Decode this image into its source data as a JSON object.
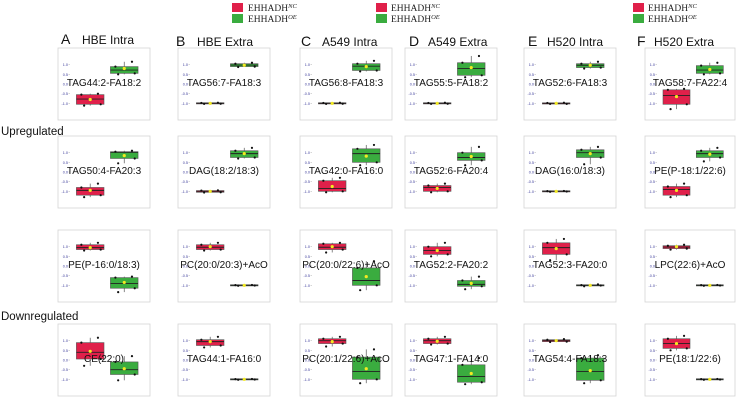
{
  "colors": {
    "nc": "#e0204a",
    "oe": "#3aac3f",
    "border": "#555555",
    "median": "#222222",
    "mean": "#f3ea22",
    "dot": "#111111",
    "tick": "#3a3a9a"
  },
  "legends": [
    {
      "nc_label": "EHHADH",
      "nc_sup": "NC",
      "oe_label": "EHHADH",
      "oe_sup": "OE"
    },
    {
      "nc_label": "EHHADH",
      "nc_sup": "NC",
      "oe_label": "EHHADH",
      "oe_sup": "OE"
    },
    {
      "nc_label": "EHHADH",
      "nc_sup": "NC",
      "oe_label": "EHHADH",
      "oe_sup": "OE"
    }
  ],
  "columns": [
    {
      "letter": "A",
      "title": "HBE Intra"
    },
    {
      "letter": "B",
      "title": "HBE Extra"
    },
    {
      "letter": "C",
      "title": "A549 Intra"
    },
    {
      "letter": "D",
      "title": "A549 Extra"
    },
    {
      "letter": "E",
      "title": "H520 Intra"
    },
    {
      "letter": "F",
      "title": "H520 Extra"
    }
  ],
  "row_labels": {
    "upregulated": "Upregulated",
    "downregulated": "Downregulated"
  },
  "chart_data": {
    "type": "boxplot",
    "groups": [
      "EHHADH NC",
      "EHHADH OE"
    ],
    "y_ticks": [
      "1.0",
      "0.5",
      "0.0",
      "-0.5",
      "-1.0"
    ],
    "panels": [
      {
        "column": "A",
        "row": 1,
        "label": "TAG44:2-FA18:2",
        "boxes": [
          {
            "q1": -1.05,
            "med": -0.78,
            "q3": -0.55,
            "wlo": -1.12,
            "whi": -0.5,
            "mean": -0.8
          },
          {
            "q1": 0.55,
            "med": 0.72,
            "q3": 0.9,
            "wlo": 0.5,
            "whi": 1.15,
            "mean": 0.8
          }
        ]
      },
      {
        "column": "B",
        "row": 1,
        "label": "TAG56:7-FA18:3",
        "boxes": [
          {
            "q1": -1.02,
            "med": -1.0,
            "q3": -0.98,
            "wlo": -1.03,
            "whi": -0.97,
            "mean": -1.0
          },
          {
            "q1": 0.9,
            "med": 0.98,
            "q3": 1.05,
            "wlo": 0.88,
            "whi": 1.1,
            "mean": 0.97
          }
        ]
      },
      {
        "column": "C",
        "row": 1,
        "label": "TAG56:8-FA18:3",
        "boxes": [
          {
            "q1": -1.02,
            "med": -1.0,
            "q3": -0.98,
            "wlo": -1.03,
            "whi": -0.97,
            "mean": -1.0
          },
          {
            "q1": 0.7,
            "med": 0.92,
            "q3": 1.05,
            "wlo": 0.65,
            "whi": 1.2,
            "mean": 0.9
          }
        ]
      },
      {
        "column": "D",
        "row": 1,
        "label": "TAG55:5-FA18:2",
        "boxes": [
          {
            "q1": -1.02,
            "med": -1.0,
            "q3": -0.98,
            "wlo": -1.03,
            "whi": -0.97,
            "mean": -1.0
          },
          {
            "q1": 0.45,
            "med": 0.8,
            "q3": 1.1,
            "wlo": 0.35,
            "whi": 1.45,
            "mean": 0.85
          }
        ]
      },
      {
        "column": "E",
        "row": 1,
        "label": "TAG52:6-FA18:3",
        "boxes": [
          {
            "q1": -1.03,
            "med": -1.0,
            "q3": -0.98,
            "wlo": -1.03,
            "whi": -0.97,
            "mean": -1.0
          },
          {
            "q1": 0.85,
            "med": 0.97,
            "q3": 1.05,
            "wlo": 0.8,
            "whi": 1.15,
            "mean": 0.97
          }
        ]
      },
      {
        "column": "F",
        "row": 1,
        "label": "TAG58:7-FA22:4",
        "boxes": [
          {
            "q1": -1.05,
            "med": -0.6,
            "q3": -0.3,
            "wlo": -1.3,
            "whi": -0.25,
            "mean": -0.65
          },
          {
            "q1": 0.55,
            "med": 0.72,
            "q3": 0.95,
            "wlo": 0.5,
            "whi": 1.1,
            "mean": 0.75
          }
        ]
      },
      {
        "column": "A",
        "row": 2,
        "label": "TAG50:4-FA20:3",
        "boxes": [
          {
            "q1": -1.2,
            "med": -0.95,
            "q3": -0.8,
            "wlo": -1.3,
            "whi": -0.6,
            "mean": -0.95
          },
          {
            "q1": 0.7,
            "med": 1.02,
            "q3": 1.05,
            "wlo": 0.45,
            "whi": 1.1,
            "mean": 0.85
          }
        ]
      },
      {
        "column": "B",
        "row": 2,
        "label": "DAG(18:2/18:3)",
        "boxes": [
          {
            "q1": -1.05,
            "med": -1.0,
            "q3": -0.96,
            "wlo": -1.06,
            "whi": -0.95,
            "mean": -1.0
          },
          {
            "q1": 0.75,
            "med": 0.95,
            "q3": 1.1,
            "wlo": 0.7,
            "whi": 1.25,
            "mean": 0.95
          }
        ]
      },
      {
        "column": "C",
        "row": 2,
        "label": "TAG42:0-FA16:0",
        "boxes": [
          {
            "q1": -1.0,
            "med": -0.85,
            "q3": -0.45,
            "wlo": -1.05,
            "whi": -0.3,
            "mean": -0.75
          },
          {
            "q1": 0.5,
            "med": 0.95,
            "q3": 1.2,
            "wlo": 0.35,
            "whi": 1.4,
            "mean": 0.82
          }
        ]
      },
      {
        "column": "D",
        "row": 2,
        "label": "TAG52:6-FA20:4",
        "boxes": [
          {
            "q1": -1.0,
            "med": -0.8,
            "q3": -0.7,
            "wlo": -1.05,
            "whi": -0.6,
            "mean": -0.85
          },
          {
            "q1": 0.6,
            "med": 0.75,
            "q3": 1.0,
            "wlo": 0.35,
            "whi": 1.3,
            "mean": 0.8
          }
        ]
      },
      {
        "column": "E",
        "row": 2,
        "label": "DAG(16:0/18:3)",
        "boxes": [
          {
            "q1": -1.01,
            "med": -1.0,
            "q3": -0.99,
            "wlo": -1.02,
            "whi": -0.98,
            "mean": -1.0
          },
          {
            "q1": 0.75,
            "med": 1.0,
            "q3": 1.15,
            "wlo": 0.4,
            "whi": 1.3,
            "mean": 0.95
          }
        ]
      },
      {
        "column": "F",
        "row": 2,
        "label": "PE(P-18:1/22:6)",
        "boxes": [
          {
            "q1": -1.2,
            "med": -0.9,
            "q3": -0.75,
            "wlo": -1.3,
            "whi": -0.6,
            "mean": -0.95
          },
          {
            "q1": 0.75,
            "med": 0.95,
            "q3": 1.1,
            "wlo": 0.55,
            "whi": 1.25,
            "mean": 0.92
          }
        ]
      },
      {
        "column": "A",
        "row": 3,
        "label": "PE(P-16:0/18:3)",
        "boxes": [
          {
            "q1": 0.85,
            "med": 0.95,
            "q3": 1.1,
            "wlo": 0.8,
            "whi": 1.2,
            "mean": 0.95
          },
          {
            "q1": -1.15,
            "med": -0.9,
            "q3": -0.6,
            "wlo": -1.35,
            "whi": -0.55,
            "mean": -0.85
          }
        ]
      },
      {
        "column": "B",
        "row": 3,
        "label": "PC(20:0/20:3)+AcO",
        "boxes": [
          {
            "q1": 0.85,
            "med": 0.97,
            "q3": 1.1,
            "wlo": 0.8,
            "whi": 1.2,
            "mean": 1.0
          },
          {
            "q1": -1.01,
            "med": -1.0,
            "q3": -0.99,
            "wlo": -1.02,
            "whi": -0.98,
            "mean": -1.0
          }
        ]
      },
      {
        "column": "C",
        "row": 3,
        "label": "PC(20:0/22:6)+AcO",
        "boxes": [
          {
            "q1": 0.85,
            "med": 0.97,
            "q3": 1.15,
            "wlo": 0.7,
            "whi": 1.2,
            "mean": 1.0
          },
          {
            "q1": -1.0,
            "med": -0.75,
            "q3": -0.1,
            "wlo": -1.25,
            "whi": 0.25,
            "mean": -0.55
          }
        ]
      },
      {
        "column": "D",
        "row": 3,
        "label": "TAG52:2-FA20:2",
        "boxes": [
          {
            "q1": 0.6,
            "med": 0.8,
            "q3": 1.0,
            "wlo": 0.5,
            "whi": 1.2,
            "mean": 0.8
          },
          {
            "q1": -1.05,
            "med": -0.95,
            "q3": -0.75,
            "wlo": -1.2,
            "whi": -0.55,
            "mean": -0.9
          }
        ]
      },
      {
        "column": "E",
        "row": 3,
        "label": "TAG52:3-FA20:0",
        "boxes": [
          {
            "q1": 0.6,
            "med": 0.95,
            "q3": 1.2,
            "wlo": 0.3,
            "whi": 1.4,
            "mean": 0.9
          },
          {
            "q1": -1.01,
            "med": -1.0,
            "q3": -0.99,
            "wlo": -1.05,
            "whi": -0.95,
            "mean": -1.0
          }
        ]
      },
      {
        "column": "F",
        "row": 3,
        "label": "LPC(22:6)+AcO",
        "boxes": [
          {
            "q1": 0.9,
            "med": 0.98,
            "q3": 1.05,
            "wlo": 0.85,
            "whi": 1.1,
            "mean": 1.0
          },
          {
            "q1": -1.01,
            "med": -1.0,
            "q3": -0.99,
            "wlo": -1.02,
            "whi": -0.98,
            "mean": -1.0
          }
        ]
      },
      {
        "column": "A",
        "row": 4,
        "label": "CE(22:0)",
        "boxes": [
          {
            "q1": 0.05,
            "med": 0.4,
            "q3": 0.9,
            "wlo": -0.3,
            "whi": 1.15,
            "mean": 0.45
          },
          {
            "q1": -0.75,
            "med": -0.5,
            "q3": -0.1,
            "wlo": -1.05,
            "whi": 0.2,
            "mean": -0.45
          }
        ]
      },
      {
        "column": "B",
        "row": 4,
        "label": "TAG44:1-FA16:0",
        "boxes": [
          {
            "q1": 0.75,
            "med": 0.95,
            "q3": 1.05,
            "wlo": 0.65,
            "whi": 1.2,
            "mean": 0.95
          },
          {
            "q1": -1.01,
            "med": -1.0,
            "q3": -0.99,
            "wlo": -1.02,
            "whi": -0.98,
            "mean": -1.0
          }
        ]
      },
      {
        "column": "C",
        "row": 4,
        "label": "PC(20:1/22:6)+AcO",
        "boxes": [
          {
            "q1": 0.85,
            "med": 1.0,
            "q3": 1.1,
            "wlo": 0.7,
            "whi": 1.2,
            "mean": 0.95
          },
          {
            "q1": -1.0,
            "med": -0.6,
            "q3": 0.15,
            "wlo": -1.2,
            "whi": 0.55,
            "mean": -0.45
          }
        ]
      },
      {
        "column": "D",
        "row": 4,
        "label": "TAG47:1-FA14:0",
        "boxes": [
          {
            "q1": 0.85,
            "med": 1.0,
            "q3": 1.1,
            "wlo": 0.8,
            "whi": 1.2,
            "mean": 0.97
          },
          {
            "q1": -1.15,
            "med": -0.85,
            "q3": -0.25,
            "wlo": -1.25,
            "whi": 0.1,
            "mean": -0.7
          }
        ]
      },
      {
        "column": "E",
        "row": 4,
        "label": "TAG54:4-FA18:3",
        "boxes": [
          {
            "q1": 0.95,
            "med": 1.0,
            "q3": 1.05,
            "wlo": 0.93,
            "whi": 1.08,
            "mean": 1.0
          },
          {
            "q1": -1.05,
            "med": -0.6,
            "q3": 0.1,
            "wlo": -1.2,
            "whi": 0.25,
            "mean": -0.55
          }
        ]
      },
      {
        "column": "F",
        "row": 4,
        "label": "PE(18:1/22:6)",
        "boxes": [
          {
            "q1": 0.6,
            "med": 0.85,
            "q3": 1.1,
            "wlo": 0.5,
            "whi": 1.25,
            "mean": 0.85
          },
          {
            "q1": -1.01,
            "med": -1.0,
            "q3": -0.99,
            "wlo": -1.02,
            "whi": -0.98,
            "mean": -1.0
          }
        ]
      }
    ]
  }
}
